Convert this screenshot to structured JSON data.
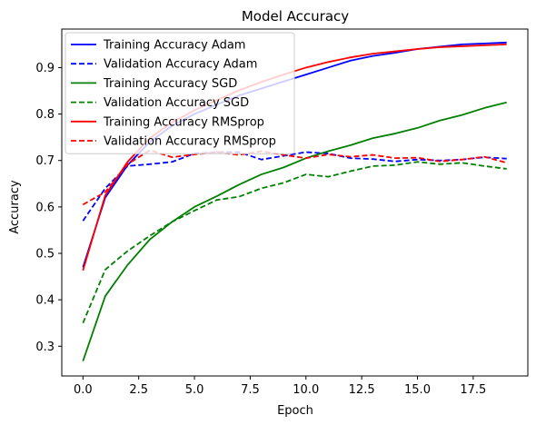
{
  "chart_data": {
    "type": "line",
    "title": "Model Accuracy",
    "xlabel": "Epoch",
    "ylabel": "Accuracy",
    "xlim": [
      -0.95,
      19.95
    ],
    "ylim": [
      0.236,
      0.983
    ],
    "xticks": [
      0.0,
      2.5,
      5.0,
      7.5,
      10.0,
      12.5,
      15.0,
      17.5
    ],
    "xtick_labels": [
      "0.0",
      "2.5",
      "5.0",
      "7.5",
      "10.0",
      "12.5",
      "15.0",
      "17.5"
    ],
    "yticks": [
      0.3,
      0.4,
      0.5,
      0.6,
      0.7,
      0.8,
      0.9
    ],
    "ytick_labels": [
      "0.3",
      "0.4",
      "0.5",
      "0.6",
      "0.7",
      "0.8",
      "0.9"
    ],
    "grid": false,
    "legend_position": "top-left",
    "x": [
      0,
      1,
      2,
      3,
      4,
      5,
      6,
      7,
      8,
      9,
      10,
      11,
      12,
      13,
      14,
      15,
      16,
      17,
      18,
      19
    ],
    "series": [
      {
        "name": "Training Accuracy Adam",
        "color": "#0000ff",
        "dash": "solid",
        "values": [
          0.47,
          0.62,
          0.69,
          0.74,
          0.775,
          0.8,
          0.82,
          0.84,
          0.855,
          0.87,
          0.885,
          0.9,
          0.915,
          0.925,
          0.932,
          0.94,
          0.945,
          0.95,
          0.952,
          0.954
        ]
      },
      {
        "name": "Validation Accuracy Adam",
        "color": "#0000ff",
        "dash": "dashed",
        "values": [
          0.57,
          0.64,
          0.688,
          0.692,
          0.697,
          0.715,
          0.718,
          0.718,
          0.702,
          0.71,
          0.718,
          0.715,
          0.705,
          0.703,
          0.698,
          0.702,
          0.7,
          0.702,
          0.707,
          0.704
        ]
      },
      {
        "name": "Training Accuracy SGD",
        "color": "#008000",
        "dash": "solid",
        "values": [
          0.268,
          0.408,
          0.475,
          0.53,
          0.568,
          0.6,
          0.623,
          0.648,
          0.67,
          0.685,
          0.705,
          0.72,
          0.733,
          0.748,
          0.758,
          0.77,
          0.786,
          0.798,
          0.813,
          0.825
        ]
      },
      {
        "name": "Validation Accuracy SGD",
        "color": "#008000",
        "dash": "dashed",
        "values": [
          0.35,
          0.465,
          0.505,
          0.538,
          0.568,
          0.592,
          0.615,
          0.622,
          0.64,
          0.652,
          0.67,
          0.665,
          0.677,
          0.688,
          0.69,
          0.697,
          0.692,
          0.695,
          0.688,
          0.682
        ]
      },
      {
        "name": "Training Accuracy RMSprop",
        "color": "#ff0000",
        "dash": "solid",
        "values": [
          0.463,
          0.625,
          0.697,
          0.748,
          0.782,
          0.808,
          0.83,
          0.851,
          0.869,
          0.885,
          0.9,
          0.912,
          0.922,
          0.93,
          0.935,
          0.94,
          0.944,
          0.946,
          0.948,
          0.95
        ]
      },
      {
        "name": "Validation Accuracy RMSprop",
        "color": "#ff0000",
        "dash": "dashed",
        "values": [
          0.605,
          0.632,
          0.692,
          0.722,
          0.707,
          0.713,
          0.718,
          0.712,
          0.72,
          0.712,
          0.705,
          0.713,
          0.708,
          0.712,
          0.705,
          0.706,
          0.698,
          0.702,
          0.708,
          0.695
        ]
      }
    ]
  }
}
